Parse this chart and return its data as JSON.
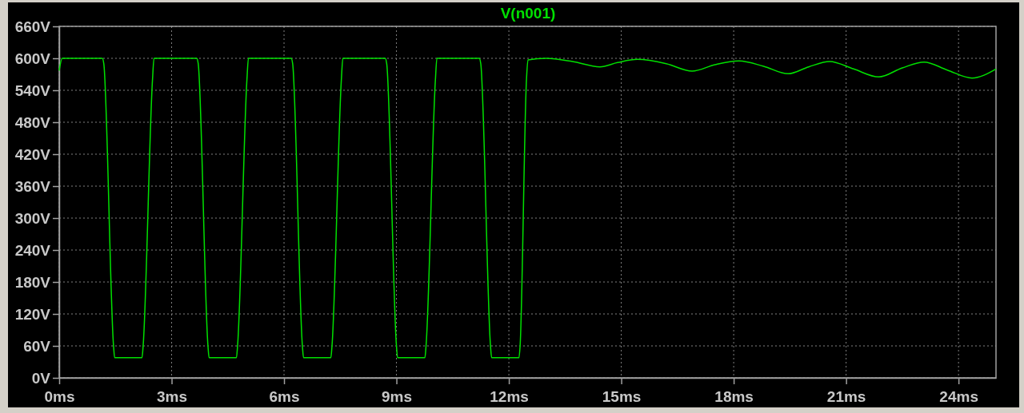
{
  "chart_data": {
    "type": "line",
    "title": "V(n001)",
    "x": [
      0,
      0.08,
      1.15,
      1.19,
      1.45,
      1.48,
      2.21,
      2.24,
      2.49,
      2.53,
      3.67,
      3.71,
      3.97,
      4.0,
      4.73,
      4.76,
      5.01,
      5.05,
      6.19,
      6.23,
      6.49,
      6.52,
      7.25,
      7.28,
      7.53,
      7.57,
      8.7,
      8.74,
      9.0,
      9.03,
      9.76,
      9.79,
      10.04,
      10.08,
      11.21,
      11.25,
      11.51,
      11.54,
      12.27,
      12.3,
      12.47,
      12.51,
      13.0,
      13.7,
      14.43,
      14.9,
      15.43,
      16.2,
      16.89,
      17.5,
      18.14,
      18.8,
      19.45,
      20.0,
      20.56,
      21.2,
      21.87,
      22.5,
      23.08,
      23.7,
      24.36,
      25.0
    ],
    "series": [
      {
        "color": "#00e000",
        "values": [
          577,
          600,
          600,
          590,
          60,
          38,
          38,
          60,
          560,
          600,
          600,
          590,
          60,
          38,
          38,
          60,
          560,
          600,
          600,
          590,
          60,
          38,
          38,
          60,
          560,
          600,
          600,
          590,
          60,
          38,
          38,
          60,
          560,
          600,
          600,
          590,
          60,
          38,
          38,
          60,
          560,
          597,
          600,
          594,
          584,
          592,
          598,
          590,
          576,
          588,
          595,
          585,
          571,
          584,
          594,
          580,
          565,
          582,
          593,
          578,
          563,
          580
        ]
      }
    ],
    "xlim": [
      0,
      25
    ],
    "xticks": [
      {
        "value": 0,
        "label": "0ms"
      },
      {
        "value": 3,
        "label": "3ms"
      },
      {
        "value": 6,
        "label": "6ms"
      },
      {
        "value": 9,
        "label": "9ms"
      },
      {
        "value": 12,
        "label": "12ms"
      },
      {
        "value": 15,
        "label": "15ms"
      },
      {
        "value": 18,
        "label": "18ms"
      },
      {
        "value": 21,
        "label": "21ms"
      },
      {
        "value": 24,
        "label": "24ms"
      }
    ],
    "ylim": [
      0,
      660
    ],
    "yticks": [
      {
        "value": 0,
        "label": "0V"
      },
      {
        "value": 60,
        "label": "60V"
      },
      {
        "value": 120,
        "label": "120V"
      },
      {
        "value": 180,
        "label": "180V"
      },
      {
        "value": 240,
        "label": "240V"
      },
      {
        "value": 300,
        "label": "300V"
      },
      {
        "value": 360,
        "label": "360V"
      },
      {
        "value": 420,
        "label": "420V"
      },
      {
        "value": 480,
        "label": "480V"
      },
      {
        "value": 540,
        "label": "540V"
      },
      {
        "value": 600,
        "label": "600V"
      },
      {
        "value": 660,
        "label": "660V"
      }
    ],
    "grid": true,
    "marker": "none",
    "line_style": "solid"
  }
}
